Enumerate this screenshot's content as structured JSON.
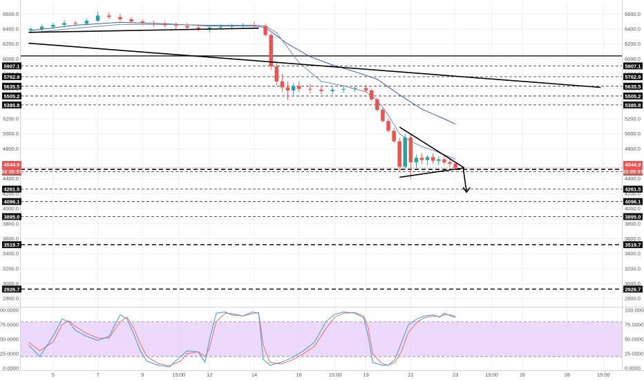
{
  "chart_data": {
    "type": "candlestick",
    "price_axis": {
      "range": [
        2700,
        6750
      ],
      "ticks": [
        "6600.0",
        "6400.0",
        "6200.0",
        "6000.0",
        "5800.0",
        "5600.0",
        "5400.0",
        "5200.0",
        "5000.0",
        "4800.0",
        "4600.0",
        "4400.0",
        "4200.0",
        "4000.0",
        "3800.0",
        "3600.0",
        "3400.0",
        "3200.0",
        "3000.0",
        "2800.0"
      ]
    },
    "time_axis": {
      "labels": [
        {
          "label": "5",
          "day": 5
        },
        {
          "label": "7",
          "day": 7
        },
        {
          "label": "9",
          "day": 9
        },
        {
          "label": "15:00",
          "day": 10.625
        },
        {
          "label": "12",
          "day": 12
        },
        {
          "label": "14",
          "day": 14
        },
        {
          "label": "16",
          "day": 16
        },
        {
          "label": "15:00",
          "day": 17.625
        },
        {
          "label": "19",
          "day": 19
        },
        {
          "label": "21",
          "day": 21
        },
        {
          "label": "23",
          "day": 23
        },
        {
          "label": "15:00",
          "day": 24.625
        },
        {
          "label": "26",
          "day": 26
        },
        {
          "label": "28",
          "day": 28
        },
        {
          "label": "15:00",
          "day": 29.625
        }
      ]
    },
    "levels": [
      {
        "value": 5907.1,
        "label": "5907.1",
        "style": "dashed-thin"
      },
      {
        "value": 5762.9,
        "label": "5762.9",
        "style": "dashed-thin"
      },
      {
        "value": 5635.5,
        "label": "5635.5",
        "style": "dashed-thin"
      },
      {
        "value": 5505.2,
        "label": "5505.2",
        "style": "dashed-thin"
      },
      {
        "value": 5385.8,
        "label": "5385.8",
        "style": "dashed-thin"
      },
      {
        "value": 4492.9,
        "label": "4492.9",
        "style": "dashed-thin"
      },
      {
        "value": 4261.5,
        "label": "4261.5",
        "style": "dashed-thin"
      },
      {
        "value": 4096.1,
        "label": "4096.1",
        "style": "dashed-thin"
      },
      {
        "value": 3895.0,
        "label": "3895.0",
        "style": "dashed-thin"
      },
      {
        "value": 3519.7,
        "label": "3519.7",
        "style": "dashed-thick"
      },
      {
        "value": 2926.7,
        "label": "2926.7",
        "style": "dashed-thick"
      }
    ],
    "current_price": {
      "value": 4544.9,
      "label": "4544.9",
      "countdown": "03:05:57",
      "color": "#ef5350"
    },
    "horizontal_lines": [
      {
        "value": 6040,
        "style": "solid"
      },
      {
        "value": 4525,
        "style": "dashed-thick"
      }
    ],
    "trendlines": [
      {
        "from": {
          "day": 3.9,
          "price": 6355
        },
        "to": {
          "day": 14.2,
          "price": 6410
        }
      },
      {
        "from": {
          "day": 3.9,
          "price": 6210
        },
        "to": {
          "day": 29.5,
          "price": 5620
        }
      },
      {
        "from": {
          "day": 20.5,
          "price": 5090
        },
        "to": {
          "day": 23.4,
          "price": 4545
        }
      },
      {
        "from": {
          "day": 20.5,
          "price": 4420
        },
        "to": {
          "day": 23.4,
          "price": 4545
        }
      }
    ],
    "arrow": {
      "from": {
        "day": 23.35,
        "price": 4540
      },
      "to": {
        "day": 23.5,
        "price": 4220
      }
    },
    "candles": [
      {
        "day": 4.0,
        "o": 6380,
        "h": 6420,
        "l": 6350,
        "c": 6400
      },
      {
        "day": 4.5,
        "o": 6400,
        "h": 6460,
        "l": 6370,
        "c": 6430
      },
      {
        "day": 5.0,
        "o": 6430,
        "h": 6480,
        "l": 6400,
        "c": 6455
      },
      {
        "day": 5.5,
        "o": 6455,
        "h": 6520,
        "l": 6420,
        "c": 6480
      },
      {
        "day": 6.0,
        "o": 6480,
        "h": 6510,
        "l": 6440,
        "c": 6470
      },
      {
        "day": 6.5,
        "o": 6470,
        "h": 6540,
        "l": 6450,
        "c": 6510
      },
      {
        "day": 7.0,
        "o": 6510,
        "h": 6630,
        "l": 6490,
        "c": 6580
      },
      {
        "day": 7.5,
        "o": 6580,
        "h": 6620,
        "l": 6530,
        "c": 6560
      },
      {
        "day": 8.0,
        "o": 6560,
        "h": 6600,
        "l": 6500,
        "c": 6530
      },
      {
        "day": 8.5,
        "o": 6530,
        "h": 6560,
        "l": 6480,
        "c": 6500
      },
      {
        "day": 9.0,
        "o": 6500,
        "h": 6530,
        "l": 6450,
        "c": 6480
      },
      {
        "day": 9.5,
        "o": 6480,
        "h": 6510,
        "l": 6430,
        "c": 6470
      },
      {
        "day": 10.0,
        "o": 6470,
        "h": 6500,
        "l": 6420,
        "c": 6450
      },
      {
        "day": 10.5,
        "o": 6450,
        "h": 6490,
        "l": 6400,
        "c": 6440
      },
      {
        "day": 11.0,
        "o": 6440,
        "h": 6480,
        "l": 6390,
        "c": 6420
      },
      {
        "day": 11.5,
        "o": 6420,
        "h": 6460,
        "l": 6370,
        "c": 6400
      },
      {
        "day": 12.0,
        "o": 6400,
        "h": 6440,
        "l": 6350,
        "c": 6420
      },
      {
        "day": 12.5,
        "o": 6420,
        "h": 6460,
        "l": 6390,
        "c": 6430
      },
      {
        "day": 13.0,
        "o": 6430,
        "h": 6470,
        "l": 6400,
        "c": 6440
      },
      {
        "day": 13.5,
        "o": 6440,
        "h": 6480,
        "l": 6410,
        "c": 6450
      },
      {
        "day": 14.0,
        "o": 6450,
        "h": 6500,
        "l": 6420,
        "c": 6440
      },
      {
        "day": 14.5,
        "o": 6440,
        "h": 6470,
        "l": 6300,
        "c": 6320
      },
      {
        "day": 14.75,
        "o": 6320,
        "h": 6340,
        "l": 5850,
        "c": 5900
      },
      {
        "day": 15.0,
        "o": 5900,
        "h": 5950,
        "l": 5650,
        "c": 5700
      },
      {
        "day": 15.25,
        "o": 5700,
        "h": 5800,
        "l": 5560,
        "c": 5620
      },
      {
        "day": 15.5,
        "o": 5620,
        "h": 5700,
        "l": 5450,
        "c": 5580
      },
      {
        "day": 15.75,
        "o": 5580,
        "h": 5680,
        "l": 5520,
        "c": 5640
      },
      {
        "day": 16.0,
        "o": 5640,
        "h": 5700,
        "l": 5560,
        "c": 5600
      },
      {
        "day": 16.5,
        "o": 5600,
        "h": 5660,
        "l": 5540,
        "c": 5590
      },
      {
        "day": 17.0,
        "o": 5590,
        "h": 5640,
        "l": 5530,
        "c": 5570
      },
      {
        "day": 17.5,
        "o": 5570,
        "h": 5620,
        "l": 5530,
        "c": 5590
      },
      {
        "day": 18.0,
        "o": 5590,
        "h": 5640,
        "l": 5550,
        "c": 5600
      },
      {
        "day": 18.5,
        "o": 5600,
        "h": 5640,
        "l": 5560,
        "c": 5610
      },
      {
        "day": 19.0,
        "o": 5610,
        "h": 5650,
        "l": 5550,
        "c": 5580
      },
      {
        "day": 19.25,
        "o": 5580,
        "h": 5600,
        "l": 5440,
        "c": 5460
      },
      {
        "day": 19.5,
        "o": 5460,
        "h": 5480,
        "l": 5300,
        "c": 5320
      },
      {
        "day": 19.75,
        "o": 5320,
        "h": 5340,
        "l": 5150,
        "c": 5170
      },
      {
        "day": 20.0,
        "o": 5170,
        "h": 5200,
        "l": 5020,
        "c": 5040
      },
      {
        "day": 20.25,
        "o": 5040,
        "h": 5080,
        "l": 4880,
        "c": 4900
      },
      {
        "day": 20.5,
        "o": 4900,
        "h": 4950,
        "l": 4500,
        "c": 4560
      },
      {
        "day": 20.75,
        "o": 4560,
        "h": 5000,
        "l": 4520,
        "c": 4950
      },
      {
        "day": 21.0,
        "o": 4950,
        "h": 4990,
        "l": 4400,
        "c": 4620
      },
      {
        "day": 21.25,
        "o": 4620,
        "h": 4720,
        "l": 4540,
        "c": 4680
      },
      {
        "day": 21.5,
        "o": 4680,
        "h": 4740,
        "l": 4600,
        "c": 4650
      },
      {
        "day": 21.75,
        "o": 4650,
        "h": 4720,
        "l": 4580,
        "c": 4690
      },
      {
        "day": 22.0,
        "o": 4690,
        "h": 4740,
        "l": 4600,
        "c": 4640
      },
      {
        "day": 22.25,
        "o": 4640,
        "h": 4700,
        "l": 4580,
        "c": 4660
      },
      {
        "day": 22.5,
        "o": 4660,
        "h": 4700,
        "l": 4590,
        "c": 4620
      },
      {
        "day": 22.75,
        "o": 4620,
        "h": 4660,
        "l": 4560,
        "c": 4600
      },
      {
        "day": 23.0,
        "o": 4600,
        "h": 4620,
        "l": 4530,
        "c": 4545
      }
    ],
    "moving_averages": [
      {
        "color": "#3a5d9c",
        "points": [
          [
            4,
            6380
          ],
          [
            6,
            6450
          ],
          [
            8,
            6490
          ],
          [
            10,
            6470
          ],
          [
            12,
            6440
          ],
          [
            14,
            6440
          ],
          [
            14.5,
            6420
          ],
          [
            15.5,
            6200
          ],
          [
            16.5,
            6030
          ],
          [
            17.5,
            5920
          ],
          [
            18.5,
            5830
          ],
          [
            19.5,
            5730
          ],
          [
            20.5,
            5520
          ],
          [
            21.5,
            5330
          ],
          [
            22.5,
            5200
          ],
          [
            23.0,
            5130
          ]
        ]
      },
      {
        "color": "#6b8cc4",
        "points": [
          [
            4,
            6350
          ],
          [
            6,
            6410
          ],
          [
            8,
            6460
          ],
          [
            10,
            6460
          ],
          [
            12,
            6450
          ],
          [
            14,
            6450
          ],
          [
            14.5,
            6440
          ],
          [
            15,
            6350
          ],
          [
            15.5,
            6150
          ],
          [
            16,
            5950
          ],
          [
            17,
            5700
          ],
          [
            18,
            5640
          ],
          [
            19,
            5560
          ],
          [
            19.5,
            5450
          ],
          [
            20,
            5250
          ],
          [
            20.5,
            5000
          ],
          [
            21,
            4900
          ],
          [
            21.5,
            4830
          ],
          [
            22,
            4780
          ],
          [
            22.5,
            4720
          ],
          [
            23.0,
            4660
          ]
        ]
      }
    ],
    "oscillator": {
      "ticks": [
        "100.0000",
        "75.0000",
        "50.0000",
        "25.0000",
        "0.0000"
      ],
      "overbought": 80,
      "oversold": 20,
      "k": [
        [
          3.9,
          40
        ],
        [
          4.4,
          20
        ],
        [
          5.0,
          55
        ],
        [
          5.4,
          85
        ],
        [
          5.7,
          80
        ],
        [
          6.0,
          65
        ],
        [
          6.5,
          55
        ],
        [
          7.0,
          48
        ],
        [
          7.5,
          55
        ],
        [
          8.0,
          92
        ],
        [
          8.3,
          85
        ],
        [
          8.6,
          60
        ],
        [
          8.9,
          30
        ],
        [
          9.2,
          12
        ],
        [
          9.7,
          5
        ],
        [
          10.2,
          2
        ],
        [
          10.7,
          20
        ],
        [
          11.0,
          30
        ],
        [
          11.5,
          28
        ],
        [
          11.8,
          10
        ],
        [
          12.0,
          50
        ],
        [
          12.3,
          95
        ],
        [
          12.7,
          97
        ],
        [
          13.0,
          92
        ],
        [
          13.5,
          90
        ],
        [
          13.9,
          97
        ],
        [
          14.2,
          95
        ],
        [
          14.4,
          15
        ],
        [
          14.7,
          5
        ],
        [
          15.2,
          10
        ],
        [
          15.7,
          18
        ],
        [
          16.2,
          30
        ],
        [
          16.7,
          45
        ],
        [
          17.2,
          80
        ],
        [
          17.6,
          93
        ],
        [
          18.0,
          97
        ],
        [
          18.5,
          95
        ],
        [
          18.9,
          87
        ],
        [
          19.1,
          55
        ],
        [
          19.3,
          10
        ],
        [
          19.7,
          5
        ],
        [
          20.0,
          5
        ],
        [
          20.3,
          15
        ],
        [
          20.6,
          45
        ],
        [
          20.9,
          75
        ],
        [
          21.3,
          85
        ],
        [
          21.6,
          90
        ],
        [
          22.0,
          92
        ],
        [
          22.3,
          88
        ],
        [
          22.5,
          95
        ],
        [
          22.8,
          90
        ],
        [
          23.0,
          88
        ]
      ],
      "d": [
        [
          3.9,
          45
        ],
        [
          4.4,
          30
        ],
        [
          5.0,
          45
        ],
        [
          5.4,
          75
        ],
        [
          5.7,
          82
        ],
        [
          6.0,
          72
        ],
        [
          6.5,
          60
        ],
        [
          7.0,
          52
        ],
        [
          7.5,
          52
        ],
        [
          8.0,
          80
        ],
        [
          8.3,
          88
        ],
        [
          8.6,
          70
        ],
        [
          8.9,
          42
        ],
        [
          9.2,
          20
        ],
        [
          9.7,
          8
        ],
        [
          10.2,
          4
        ],
        [
          10.7,
          12
        ],
        [
          11.0,
          25
        ],
        [
          11.5,
          28
        ],
        [
          11.8,
          20
        ],
        [
          12.0,
          35
        ],
        [
          12.3,
          80
        ],
        [
          12.7,
          95
        ],
        [
          13.0,
          94
        ],
        [
          13.5,
          90
        ],
        [
          13.9,
          94
        ],
        [
          14.2,
          96
        ],
        [
          14.4,
          40
        ],
        [
          14.7,
          10
        ],
        [
          15.2,
          7
        ],
        [
          15.7,
          14
        ],
        [
          16.2,
          25
        ],
        [
          16.7,
          38
        ],
        [
          17.2,
          68
        ],
        [
          17.6,
          88
        ],
        [
          18.0,
          95
        ],
        [
          18.5,
          96
        ],
        [
          18.9,
          90
        ],
        [
          19.1,
          70
        ],
        [
          19.3,
          25
        ],
        [
          19.7,
          8
        ],
        [
          20.0,
          5
        ],
        [
          20.3,
          10
        ],
        [
          20.6,
          30
        ],
        [
          20.9,
          62
        ],
        [
          21.3,
          80
        ],
        [
          21.6,
          87
        ],
        [
          22.0,
          90
        ],
        [
          22.3,
          89
        ],
        [
          22.5,
          92
        ],
        [
          22.8,
          92
        ],
        [
          23.0,
          89
        ]
      ]
    }
  }
}
